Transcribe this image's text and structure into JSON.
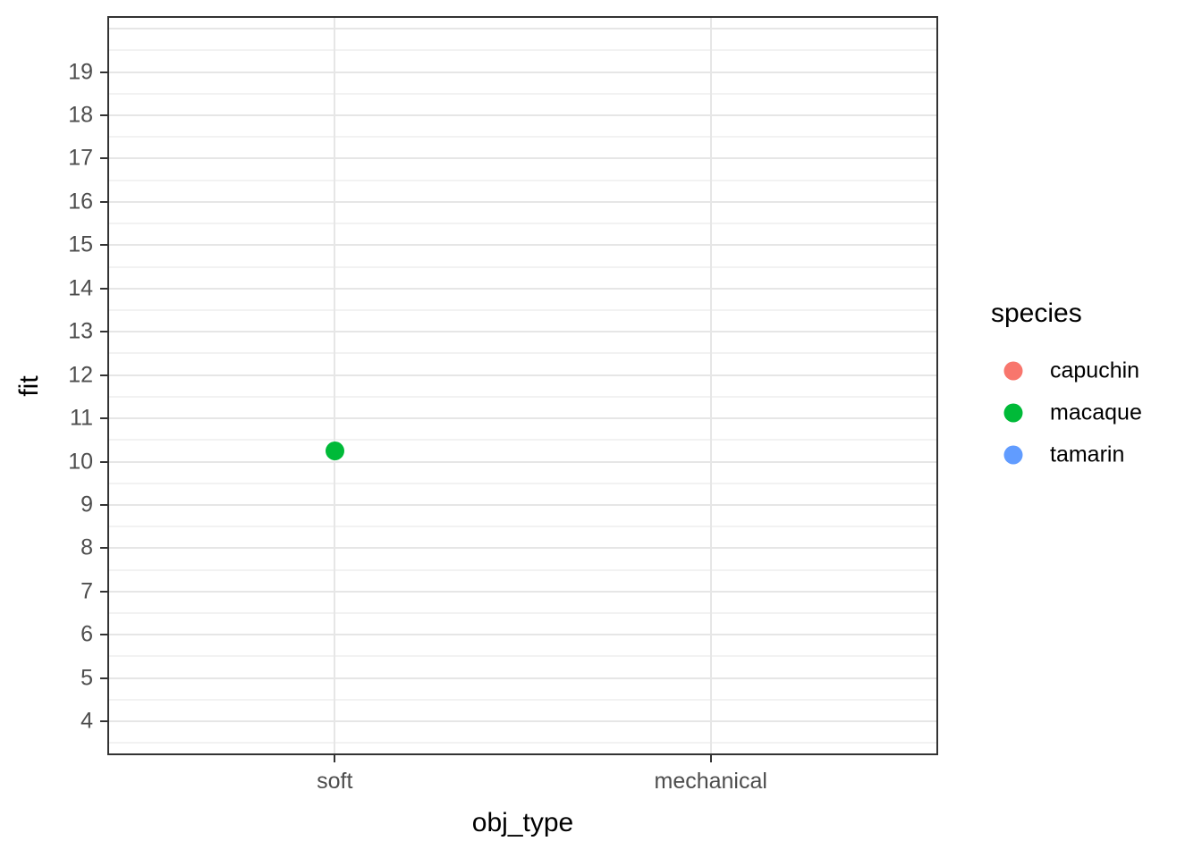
{
  "chart_data": {
    "type": "scatter",
    "title": "",
    "xlabel": "obj_type",
    "ylabel": "fit",
    "x_categories": [
      "soft",
      "mechanical"
    ],
    "y_ticks": [
      4,
      5,
      6,
      7,
      8,
      9,
      10,
      11,
      12,
      13,
      14,
      15,
      16,
      17,
      18,
      19
    ],
    "ylim": [
      3.26,
      20.25
    ],
    "y_extra_major_gridlines": [
      20
    ],
    "grid": "major and minor horizontal gridlines, major vertical gridlines at categories",
    "legend_position": "right",
    "points": [
      {
        "x": "soft",
        "series": "macaque",
        "y": 10.25
      }
    ],
    "legend": {
      "title": "species",
      "entries": [
        {
          "label": "capuchin",
          "color": "#F8766D"
        },
        {
          "label": "macaque",
          "color": "#00BA38"
        },
        {
          "label": "tamarin",
          "color": "#619CFF"
        }
      ]
    },
    "theme": {
      "panel_background": "#FFFFFF",
      "panel_border_color": "#333333",
      "grid_major_color": "#E6E6E6",
      "grid_minor_color": "#F2F2F2",
      "tick_mark_color": "#333333",
      "tick_label_color": "#4D4D4D",
      "axis_title_color": "#000000",
      "point_color_macaque": "#00BA38"
    }
  }
}
